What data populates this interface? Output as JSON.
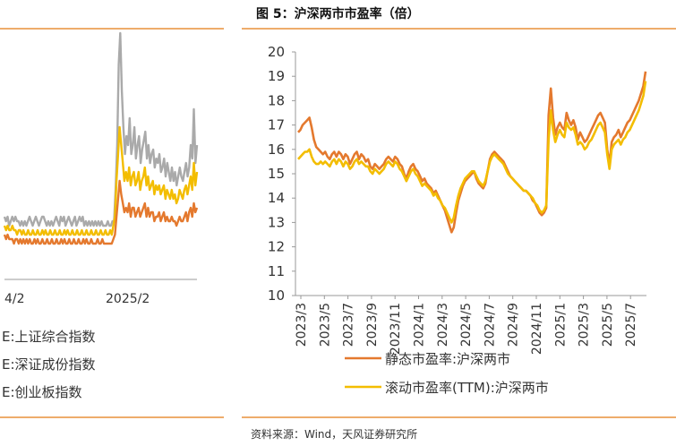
{
  "chart_data": [
    {
      "type": "line",
      "title": "",
      "x_tick_labels": [
        "4/2",
        "2025/2"
      ],
      "series": [
        {
          "name": "上证综合指数",
          "color": "#aaaaaa",
          "values": [
            14,
            13,
            14,
            12,
            13,
            14,
            13,
            14,
            13,
            13,
            12,
            13,
            12,
            13,
            12,
            13,
            14,
            13,
            12,
            13,
            14,
            13,
            12,
            13,
            14,
            14,
            13,
            12,
            13,
            12,
            13,
            12,
            13,
            14,
            13,
            12,
            14,
            13,
            14,
            12,
            13,
            14,
            13,
            12,
            13,
            14,
            12,
            13,
            14,
            13,
            14,
            12,
            13,
            12,
            13,
            12,
            13,
            12,
            13,
            12,
            13,
            12,
            13,
            12,
            12,
            12,
            13,
            12,
            12,
            13,
            13,
            20,
            30,
            48,
            55,
            42,
            34,
            28,
            32,
            30,
            36,
            28,
            30,
            34,
            27,
            30,
            32,
            26,
            29,
            31,
            33,
            27,
            30,
            26,
            28,
            29,
            25,
            27,
            26,
            28,
            24,
            25,
            27,
            23,
            26,
            24,
            22,
            25,
            22,
            24,
            21,
            23,
            25,
            23,
            22,
            24,
            26,
            23,
            25,
            30,
            27,
            38,
            26,
            30
          ]
        },
        {
          "name": "深证成份指数",
          "color": "#f3bd00",
          "values": [
            12,
            11,
            12,
            11,
            11,
            12,
            11,
            11,
            10,
            11,
            11,
            10,
            11,
            10,
            10,
            11,
            10,
            10,
            11,
            10,
            10,
            11,
            10,
            10,
            11,
            10,
            11,
            10,
            10,
            11,
            10,
            10,
            11,
            10,
            10,
            11,
            10,
            10,
            11,
            10,
            11,
            10,
            10,
            11,
            10,
            10,
            11,
            10,
            10,
            11,
            10,
            10,
            11,
            10,
            10,
            11,
            10,
            10,
            11,
            10,
            10,
            11,
            10,
            10,
            11,
            10,
            10,
            11,
            10,
            12,
            14,
            22,
            28,
            34,
            30,
            26,
            22,
            24,
            22,
            25,
            21,
            23,
            24,
            21,
            22,
            24,
            20,
            22,
            23,
            25,
            21,
            23,
            20,
            21,
            22,
            19,
            21,
            20,
            21,
            19,
            20,
            21,
            18,
            20,
            19,
            18,
            20,
            18,
            19,
            17,
            18,
            20,
            19,
            18,
            20,
            21,
            19,
            21,
            23,
            20,
            26,
            21,
            24
          ]
        },
        {
          "name": "创业板指数",
          "color": "#e4792e",
          "values": [
            10,
            9,
            10,
            9,
            9,
            9,
            8,
            9,
            9,
            8,
            9,
            8,
            9,
            8,
            9,
            8,
            9,
            8,
            8,
            9,
            8,
            9,
            8,
            8,
            9,
            8,
            8,
            9,
            8,
            8,
            9,
            8,
            8,
            9,
            8,
            8,
            9,
            8,
            9,
            8,
            8,
            9,
            8,
            8,
            9,
            8,
            8,
            9,
            8,
            8,
            9,
            8,
            9,
            8,
            8,
            9,
            8,
            8,
            8,
            9,
            8,
            8,
            9,
            8,
            8,
            8,
            8,
            8,
            8,
            9,
            10,
            14,
            18,
            22,
            19,
            17,
            15,
            16,
            15,
            17,
            14,
            16,
            16,
            14,
            15,
            16,
            14,
            15,
            16,
            17,
            14,
            16,
            14,
            15,
            15,
            13,
            14,
            14,
            15,
            13,
            14,
            15,
            13,
            14,
            13,
            13,
            14,
            13,
            13,
            12,
            13,
            14,
            13,
            13,
            14,
            15,
            13,
            15,
            16,
            14,
            17,
            15,
            16
          ]
        }
      ],
      "legend": [
        "上证综合指数",
        "深证成份指数",
        "创业板指数"
      ],
      "legend_prefix": "E:"
    },
    {
      "type": "line",
      "title": "图 5：沪深两市市盈率（倍）",
      "ylim": [
        10,
        20
      ],
      "y_ticks": [
        10,
        11,
        12,
        13,
        14,
        15,
        16,
        17,
        18,
        19,
        20
      ],
      "x_tick_labels": [
        "2023/3",
        "2023/5",
        "2023/7",
        "2023/9",
        "2023/11",
        "2024/1",
        "2024/3",
        "2024/5",
        "2024/7",
        "2024/9",
        "2024/11",
        "2025/1",
        "2025/3",
        "2025/5",
        "2025/7"
      ],
      "series": [
        {
          "name": "静态市盈率:沪深两市",
          "color": "#e4792e",
          "values": [
            16.7,
            16.8,
            17.0,
            17.1,
            17.2,
            17.3,
            16.9,
            16.4,
            16.1,
            16.0,
            15.9,
            15.8,
            15.9,
            15.7,
            15.6,
            15.8,
            15.9,
            15.7,
            15.9,
            15.8,
            15.6,
            15.8,
            15.7,
            15.4,
            15.6,
            15.8,
            15.9,
            15.6,
            15.8,
            15.7,
            15.5,
            15.6,
            15.3,
            15.2,
            15.4,
            15.3,
            15.2,
            15.3,
            15.4,
            15.6,
            15.7,
            15.6,
            15.5,
            15.7,
            15.6,
            15.4,
            15.3,
            15.0,
            14.8,
            15.1,
            15.3,
            15.4,
            15.2,
            15.1,
            14.9,
            14.7,
            14.8,
            14.6,
            14.5,
            14.4,
            14.2,
            14.3,
            14.1,
            13.9,
            13.7,
            13.5,
            13.2,
            12.9,
            12.6,
            12.8,
            13.4,
            13.9,
            14.2,
            14.5,
            14.7,
            14.8,
            14.9,
            15.0,
            15.1,
            14.8,
            14.6,
            14.5,
            14.4,
            14.6,
            15.1,
            15.6,
            15.8,
            15.9,
            15.8,
            15.7,
            15.6,
            15.5,
            15.3,
            15.1,
            14.9,
            14.8,
            14.7,
            14.6,
            14.5,
            14.4,
            14.3,
            14.3,
            14.2,
            14.1,
            13.9,
            13.8,
            13.6,
            13.4,
            13.3,
            13.4,
            13.6,
            17.4,
            18.5,
            17.3,
            16.6,
            16.9,
            17.1,
            16.9,
            16.8,
            17.5,
            17.2,
            17.0,
            17.2,
            16.9,
            16.4,
            16.7,
            16.5,
            16.3,
            16.4,
            16.6,
            16.8,
            17.0,
            17.2,
            17.4,
            17.5,
            17.3,
            17.1,
            16.0,
            15.4,
            16.3,
            16.5,
            16.6,
            16.8,
            16.5,
            16.7,
            16.9,
            17.1,
            17.2,
            17.4,
            17.6,
            17.8,
            18.0,
            18.3,
            18.6,
            19.2
          ]
        },
        {
          "name": "滚动市盈率(TTM):沪深两市",
          "color": "#f3bd00",
          "values": [
            15.6,
            15.7,
            15.8,
            15.9,
            15.9,
            16.0,
            15.7,
            15.5,
            15.4,
            15.4,
            15.5,
            15.4,
            15.5,
            15.4,
            15.3,
            15.5,
            15.6,
            15.4,
            15.6,
            15.5,
            15.3,
            15.5,
            15.4,
            15.2,
            15.3,
            15.5,
            15.6,
            15.4,
            15.5,
            15.4,
            15.3,
            15.3,
            15.1,
            15.0,
            15.2,
            15.1,
            15.0,
            15.1,
            15.2,
            15.4,
            15.5,
            15.4,
            15.3,
            15.5,
            15.4,
            15.2,
            15.1,
            14.9,
            14.7,
            14.9,
            15.1,
            15.2,
            15.0,
            14.9,
            14.7,
            14.5,
            14.6,
            14.5,
            14.4,
            14.3,
            14.1,
            14.2,
            14.0,
            13.9,
            13.7,
            13.6,
            13.4,
            13.2,
            13.0,
            13.2,
            13.7,
            14.1,
            14.4,
            14.6,
            14.8,
            14.9,
            15.0,
            15.1,
            15.1,
            14.9,
            14.7,
            14.6,
            14.5,
            14.7,
            15.1,
            15.5,
            15.7,
            15.8,
            15.7,
            15.6,
            15.5,
            15.4,
            15.2,
            15.0,
            14.9,
            14.8,
            14.7,
            14.6,
            14.5,
            14.4,
            14.3,
            14.3,
            14.2,
            14.1,
            14.0,
            13.8,
            13.7,
            13.5,
            13.4,
            13.5,
            13.7,
            16.4,
            17.6,
            16.8,
            16.3,
            16.6,
            16.8,
            16.6,
            16.5,
            17.1,
            16.9,
            16.8,
            16.9,
            16.6,
            16.2,
            16.3,
            16.2,
            16.0,
            16.1,
            16.3,
            16.4,
            16.6,
            16.8,
            17.0,
            17.1,
            16.9,
            16.7,
            15.8,
            15.2,
            16.0,
            16.2,
            16.3,
            16.4,
            16.2,
            16.4,
            16.5,
            16.7,
            16.8,
            17.0,
            17.2,
            17.4,
            17.6,
            17.9,
            18.2,
            18.8
          ]
        }
      ],
      "legend": [
        "静态市盈率:沪深两市",
        "滚动市盈率(TTM):沪深两市"
      ]
    }
  ],
  "source": "资料来源：Wind，天风证券研究所"
}
